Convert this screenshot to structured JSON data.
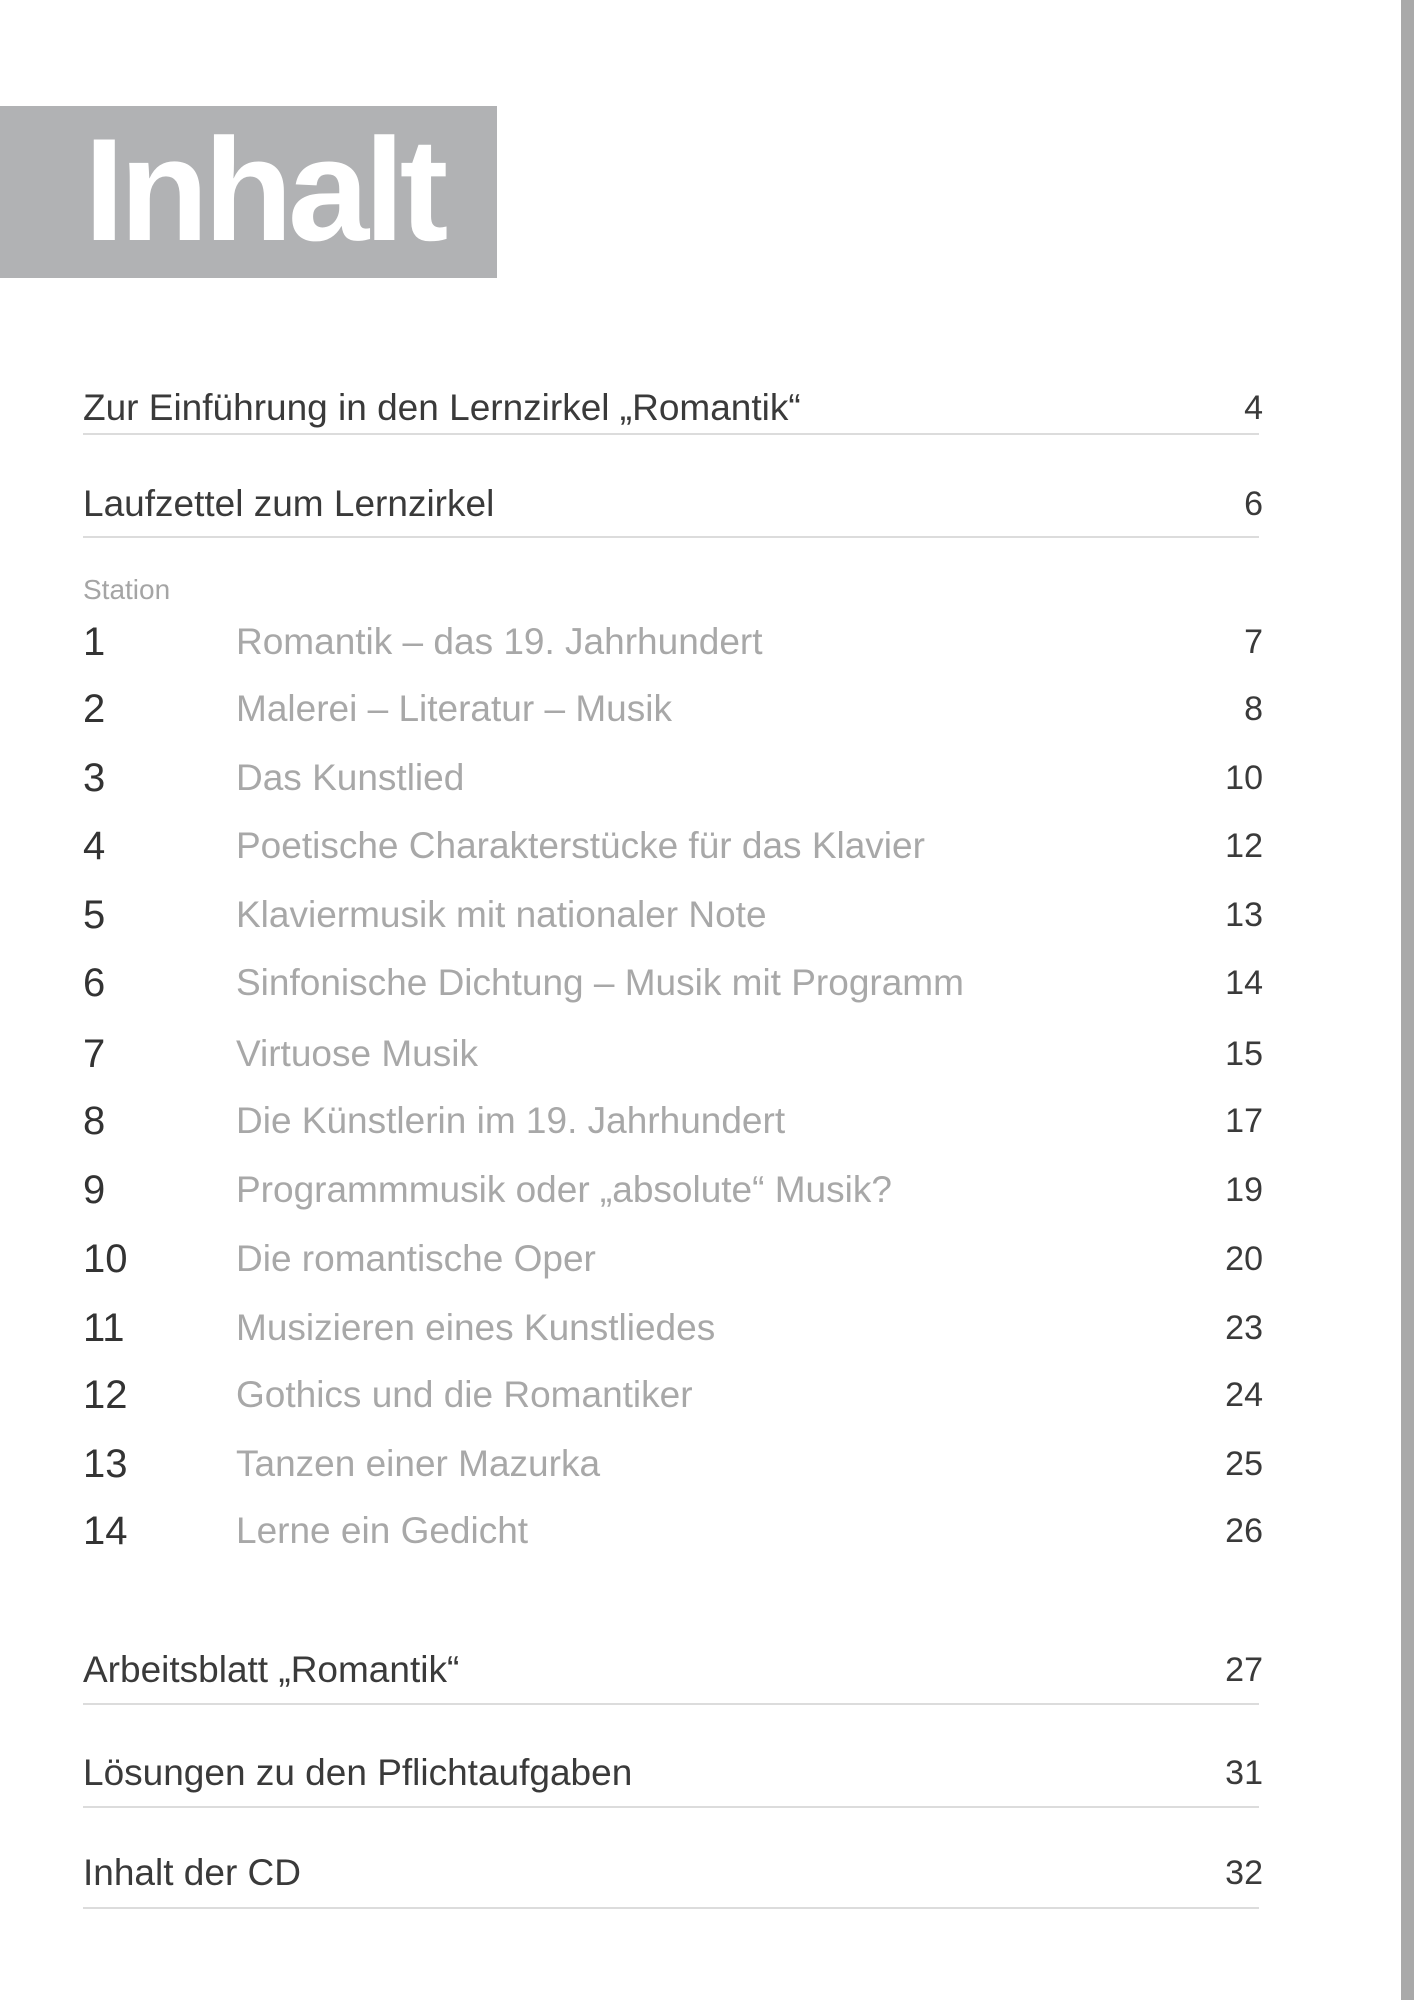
{
  "title": "Inhalt",
  "top_entries": [
    {
      "label": "Zur Einführung in den Lernzirkel „Romantik“",
      "page": "4"
    },
    {
      "label": "Laufzettel zum Lernzirkel",
      "page": "6"
    }
  ],
  "station_heading": "Station",
  "stations": [
    {
      "num": "1",
      "label": "Romantik – das 19. Jahrhundert",
      "page": "7"
    },
    {
      "num": "2",
      "label": "Malerei – Literatur – Musik",
      "page": "8"
    },
    {
      "num": "3",
      "label": "Das Kunstlied",
      "page": "10"
    },
    {
      "num": "4",
      "label": "Poetische Charakterstücke für das Klavier",
      "page": "12"
    },
    {
      "num": "5",
      "label": "Klaviermusik mit nationaler Note",
      "page": "13"
    },
    {
      "num": "6",
      "label": "Sinfonische Dichtung – Musik mit Programm",
      "page": "14"
    },
    {
      "num": "7",
      "label": "Virtuose Musik",
      "page": "15"
    },
    {
      "num": "8",
      "label": "Die Künstlerin im 19. Jahrhundert",
      "page": "17"
    },
    {
      "num": "9",
      "label": "Programmmusik oder „absolute“ Musik?",
      "page": "19"
    },
    {
      "num": "10",
      "label": "Die romantische Oper",
      "page": "20"
    },
    {
      "num": "11",
      "label": "Musizieren eines Kunstliedes",
      "page": "23"
    },
    {
      "num": "12",
      "label": "Gothics und die Romantiker",
      "page": "24"
    },
    {
      "num": "13",
      "label": "Tanzen einer Mazurka",
      "page": "25"
    },
    {
      "num": "14",
      "label": "Lerne ein Gedicht",
      "page": "26"
    }
  ],
  "bottom_entries": [
    {
      "label": "Arbeitsblatt „Romantik“",
      "page": "27"
    },
    {
      "label": "Lösungen zu den Pflichtaufgaben",
      "page": "31"
    },
    {
      "label": "Inhalt der CD",
      "page": "32"
    }
  ],
  "colors": {
    "title_box": "#b1b2b4",
    "station_title": "#a8a8a8",
    "text": "#3a3a3a"
  }
}
